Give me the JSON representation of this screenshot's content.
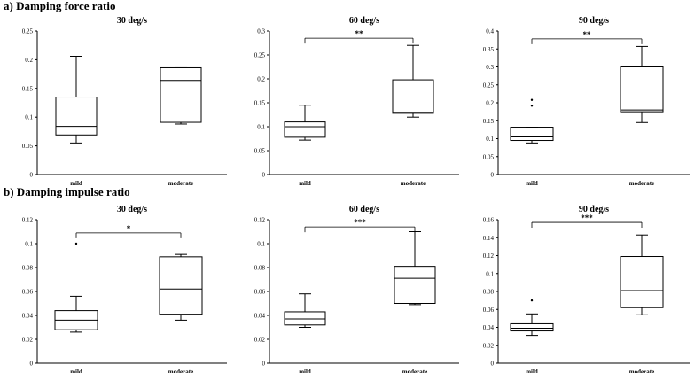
{
  "sections": [
    {
      "label": "a) Damping force ratio"
    },
    {
      "label": "b) Damping impulse ratio"
    }
  ],
  "chart_data": [
    {
      "type": "box",
      "title": "30 deg/s",
      "categories": [
        "mild",
        "moderate"
      ],
      "ylim": [
        0,
        0.25
      ],
      "yticks": [
        {
          "v": 0,
          "label": "0"
        },
        {
          "v": 0.05,
          "label": "0.05"
        },
        {
          "v": 0.1,
          "label": "0.1"
        },
        {
          "v": 0.15,
          "label": "0.15"
        },
        {
          "v": 0.2,
          "label": "0.2"
        },
        {
          "v": 0.25,
          "label": "0.25"
        }
      ],
      "boxes": [
        {
          "category": "mild",
          "min": 0.055,
          "q1": 0.069,
          "median": 0.084,
          "q3": 0.135,
          "max": 0.206,
          "outliers": []
        },
        {
          "category": "moderate",
          "min": 0.088,
          "q1": 0.091,
          "median": 0.164,
          "q3": 0.186,
          "max": 0.186,
          "outliers": []
        }
      ],
      "significance": null
    },
    {
      "type": "box",
      "title": "60 deg/s",
      "categories": [
        "mild",
        "moderate"
      ],
      "ylim": [
        0,
        0.3
      ],
      "yticks": [
        {
          "v": 0,
          "label": "0"
        },
        {
          "v": 0.05,
          "label": "0.05"
        },
        {
          "v": 0.1,
          "label": "0.1"
        },
        {
          "v": 0.15,
          "label": "0.15"
        },
        {
          "v": 0.2,
          "label": "0.2"
        },
        {
          "v": 0.25,
          "label": "0.25"
        },
        {
          "v": 0.3,
          "label": "0.3"
        }
      ],
      "boxes": [
        {
          "category": "mild",
          "min": 0.072,
          "q1": 0.078,
          "median": 0.1,
          "q3": 0.11,
          "max": 0.145,
          "outliers": []
        },
        {
          "category": "moderate",
          "min": 0.12,
          "q1": 0.128,
          "median": 0.13,
          "q3": 0.198,
          "max": 0.27,
          "outliers": []
        }
      ],
      "significance": {
        "label": "**",
        "value": 0.285
      }
    },
    {
      "type": "box",
      "title": "90 deg/s",
      "categories": [
        "mild",
        "moderate"
      ],
      "ylim": [
        0,
        0.4
      ],
      "yticks": [
        {
          "v": 0,
          "label": "0"
        },
        {
          "v": 0.05,
          "label": "0.05"
        },
        {
          "v": 0.1,
          "label": "0.1"
        },
        {
          "v": 0.15,
          "label": "0.15"
        },
        {
          "v": 0.2,
          "label": "0.2"
        },
        {
          "v": 0.25,
          "label": "0.25"
        },
        {
          "v": 0.3,
          "label": "0.3"
        },
        {
          "v": 0.35,
          "label": "0.35"
        },
        {
          "v": 0.4,
          "label": "0.4"
        }
      ],
      "boxes": [
        {
          "category": "mild",
          "min": 0.088,
          "q1": 0.095,
          "median": 0.105,
          "q3": 0.132,
          "max": 0.132,
          "outliers": [
            0.192,
            0.208
          ]
        },
        {
          "category": "moderate",
          "min": 0.145,
          "q1": 0.175,
          "median": 0.18,
          "q3": 0.3,
          "max": 0.357,
          "outliers": []
        }
      ],
      "significance": {
        "label": "**",
        "value": 0.378
      }
    },
    {
      "type": "box",
      "title": "30 deg/s",
      "categories": [
        "mild",
        "moderate"
      ],
      "ylim": [
        0,
        0.12
      ],
      "yticks": [
        {
          "v": 0,
          "label": "0"
        },
        {
          "v": 0.02,
          "label": "0.02"
        },
        {
          "v": 0.04,
          "label": "0.04"
        },
        {
          "v": 0.06,
          "label": "0.06"
        },
        {
          "v": 0.08,
          "label": "0.08"
        },
        {
          "v": 0.1,
          "label": "0.1"
        },
        {
          "v": 0.12,
          "label": "0.12"
        }
      ],
      "boxes": [
        {
          "category": "mild",
          "min": 0.026,
          "q1": 0.028,
          "median": 0.036,
          "q3": 0.044,
          "max": 0.056,
          "outliers": [
            0.1
          ]
        },
        {
          "category": "moderate",
          "min": 0.036,
          "q1": 0.041,
          "median": 0.062,
          "q3": 0.089,
          "max": 0.091,
          "outliers": []
        }
      ],
      "significance": {
        "label": "*",
        "value": 0.109
      }
    },
    {
      "type": "box",
      "title": "60 deg/s",
      "categories": [
        "mild",
        "moderate"
      ],
      "ylim": [
        0,
        0.12
      ],
      "yticks": [
        {
          "v": 0,
          "label": "0"
        },
        {
          "v": 0.02,
          "label": "0.02"
        },
        {
          "v": 0.04,
          "label": "0.04"
        },
        {
          "v": 0.06,
          "label": "0.06"
        },
        {
          "v": 0.08,
          "label": "0.08"
        },
        {
          "v": 0.1,
          "label": "0.1"
        },
        {
          "v": 0.12,
          "label": "0.12"
        }
      ],
      "boxes": [
        {
          "category": "mild",
          "min": 0.03,
          "q1": 0.032,
          "median": 0.037,
          "q3": 0.043,
          "max": 0.058,
          "outliers": []
        },
        {
          "category": "moderate",
          "min": 0.049,
          "q1": 0.05,
          "median": 0.071,
          "q3": 0.081,
          "max": 0.11,
          "outliers": []
        }
      ],
      "significance": {
        "label": "***",
        "value": 0.114
      }
    },
    {
      "type": "box",
      "title": "90 deg/s",
      "categories": [
        "mild",
        "moderate"
      ],
      "ylim": [
        0,
        0.16
      ],
      "yticks": [
        {
          "v": 0,
          "label": "0"
        },
        {
          "v": 0.02,
          "label": "0.02"
        },
        {
          "v": 0.04,
          "label": "0.04"
        },
        {
          "v": 0.06,
          "label": "0.06"
        },
        {
          "v": 0.08,
          "label": "0.08"
        },
        {
          "v": 0.1,
          "label": "0.1"
        },
        {
          "v": 0.12,
          "label": "0.12"
        },
        {
          "v": 0.14,
          "label": "0.14"
        },
        {
          "v": 0.16,
          "label": "0.16"
        }
      ],
      "boxes": [
        {
          "category": "mild",
          "min": 0.031,
          "q1": 0.036,
          "median": 0.039,
          "q3": 0.044,
          "max": 0.055,
          "outliers": [
            0.07
          ]
        },
        {
          "category": "moderate",
          "min": 0.054,
          "q1": 0.062,
          "median": 0.081,
          "q3": 0.119,
          "max": 0.143,
          "outliers": []
        }
      ],
      "significance": {
        "label": "***",
        "value": 0.157
      }
    }
  ]
}
